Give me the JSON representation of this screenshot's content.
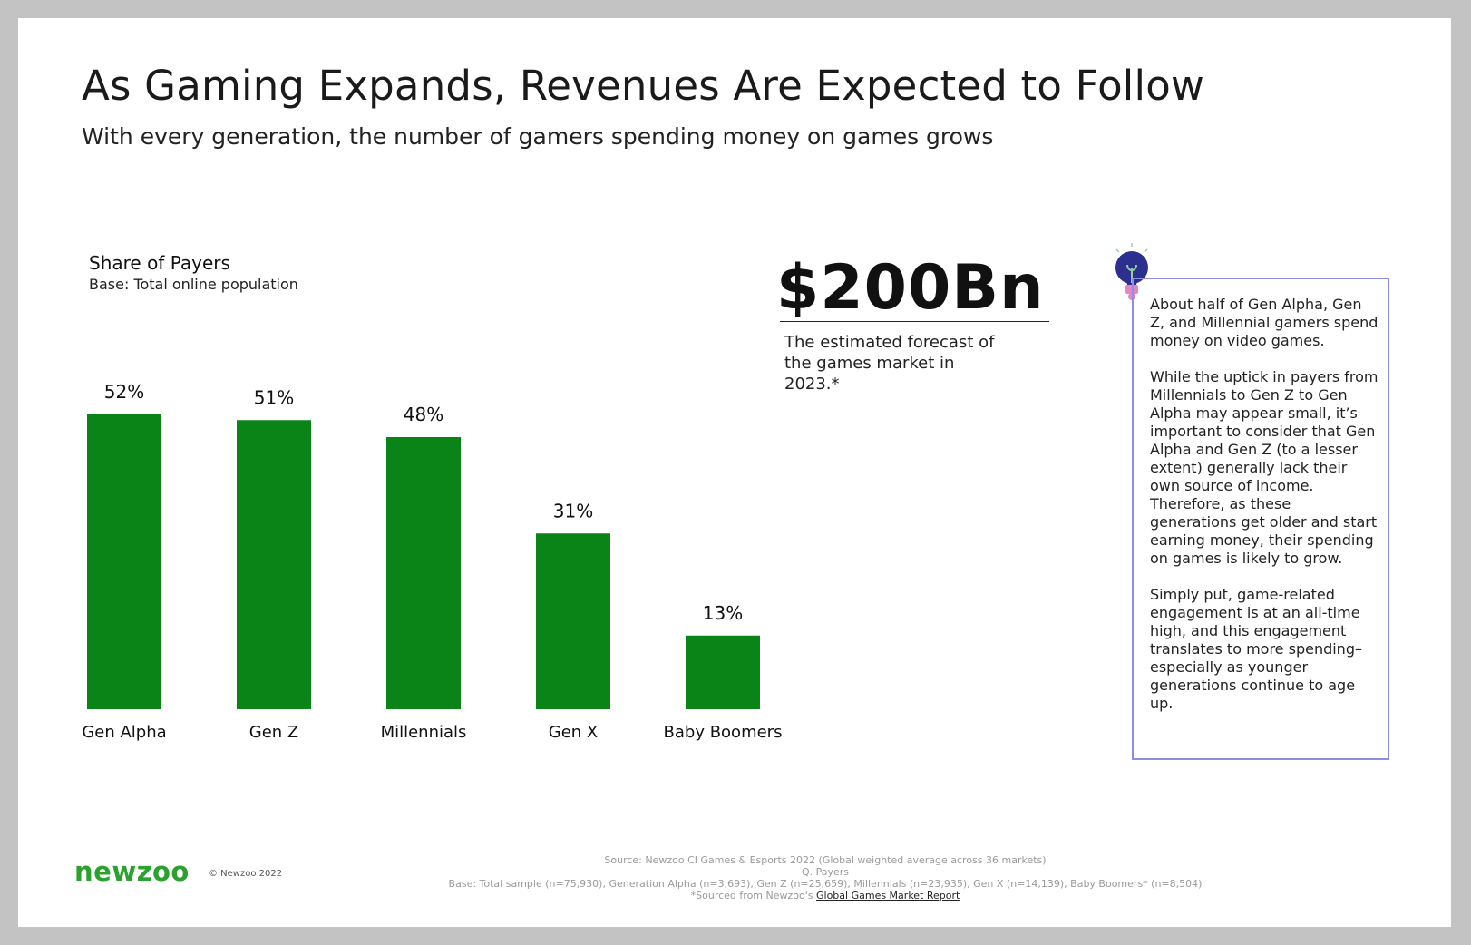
{
  "header": {
    "title": "As Gaming Expands, Revenues Are Expected to Follow",
    "subtitle": "With every generation, the number of gamers spending money on games grows"
  },
  "chart_data": {
    "type": "bar",
    "title": "Share of Payers",
    "subtitle": "Base: Total online population",
    "categories": [
      "Gen Alpha",
      "Gen Z",
      "Millennials",
      "Gen X",
      "Baby Boomers"
    ],
    "values": [
      52,
      51,
      48,
      31,
      13
    ],
    "value_labels": [
      "52%",
      "51%",
      "48%",
      "31%",
      "13%"
    ],
    "unit": "%",
    "ylim": [
      0,
      52
    ],
    "grid": false,
    "xlabel": "",
    "ylabel": "",
    "bar_color": "#0a8417"
  },
  "highlight": {
    "value": "$200Bn",
    "description": "The estimated forecast of the games market in 2023.*"
  },
  "callout": {
    "icon": "lightbulb-icon",
    "paragraphs": [
      "About half of Gen Alpha, Gen Z, and Millennial gamers spend money on video games.",
      "While the uptick in payers from Millennials to Gen Z to Gen Alpha may appear small, it’s important to consider that Gen Alpha and Gen Z (to a lesser extent) generally lack their own source of income. Therefore, as these generations get older and start earning money, their spending on games is likely to grow.",
      "Simply put, game-related engagement is at an all-time high, and  this engagement translates to more spending–especially as younger generations continue to age up."
    ]
  },
  "footer": {
    "logo": "newzoo",
    "copyright": "© Newzoo 2022",
    "source": "Source: Newzoo CI Games & Esports 2022 (Global weighted average across 36 markets)",
    "question": "Q. Payers",
    "base": "Base: Total sample (n=75,930), Generation Alpha (n=3,693), Gen Z (n=25,659), Millennials (n=23,935), Gen X (n=14,139), Baby Boomers* (n=8,504)",
    "sourced_prefix": "*Sourced from Newzoo's ",
    "sourced_link": "Global Games Market Report"
  },
  "colors": {
    "brand": "#2ba12e",
    "bar": "#0a8417",
    "box_border": "#8d8de2"
  }
}
